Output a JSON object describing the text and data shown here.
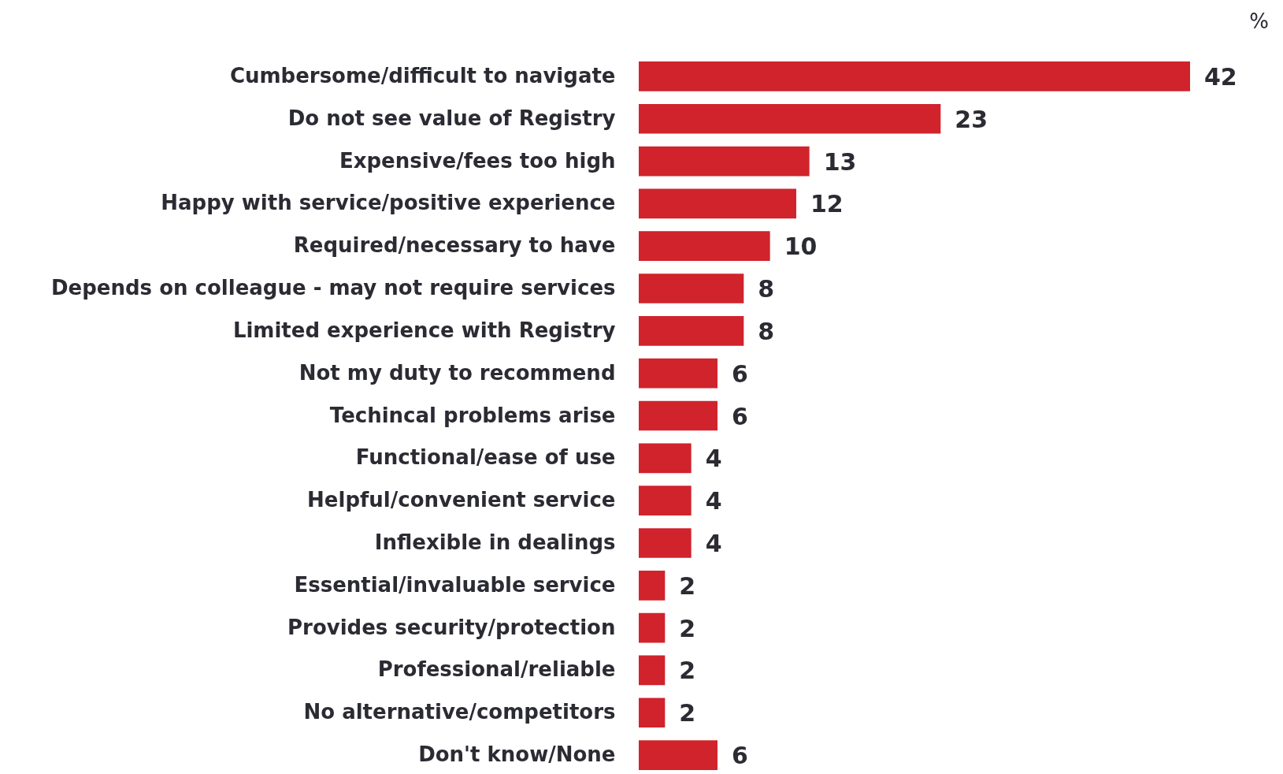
{
  "chart_data": {
    "type": "bar",
    "orientation": "horizontal",
    "data_labels": true,
    "color": "#d0232c",
    "annotations": [
      "%"
    ],
    "categories": [
      "Cumbersome/difficult to navigate",
      "Do not see value of Registry",
      "Expensive/fees too high",
      "Happy with service/positive experience",
      "Required/necessary to have",
      "Depends on colleague - may not require services",
      "Limited experience with Registry",
      "Not my duty to recommend",
      "Techincal problems arise",
      "Functional/ease of use",
      "Helpful/convenient service",
      "Inflexible in dealings",
      "Essential/invaluable service",
      "Provides security/protection",
      "Professional/reliable",
      "No alternative/competitors",
      "Don't know/None"
    ],
    "values": [
      42,
      23,
      13,
      12,
      10,
      8,
      8,
      6,
      6,
      4,
      4,
      4,
      2,
      2,
      2,
      2,
      6
    ]
  }
}
